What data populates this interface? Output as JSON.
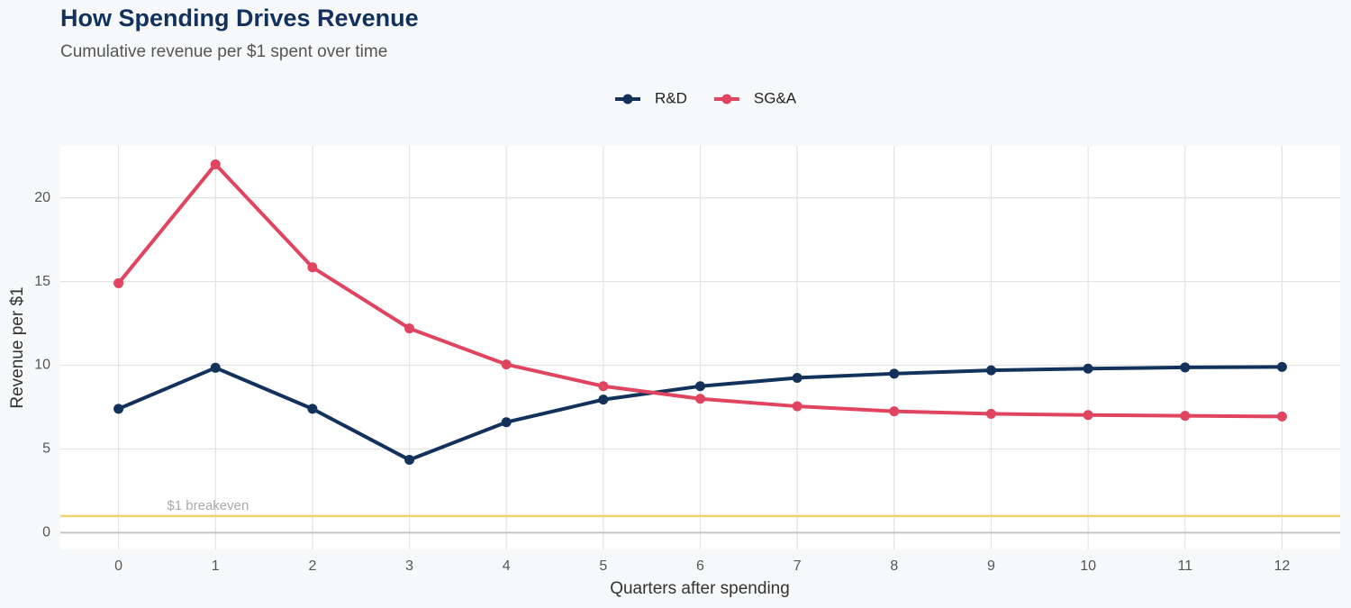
{
  "chart_data": {
    "type": "line",
    "title": "How Spending Drives Revenue",
    "subtitle": "Cumulative revenue per $1 spent over time",
    "x_label": "Quarters after spending",
    "y_label": "Revenue per $1",
    "x": [
      0,
      1,
      2,
      3,
      4,
      5,
      6,
      7,
      8,
      9,
      10,
      11,
      12
    ],
    "series": [
      {
        "name": "R&D",
        "color": "#12325b",
        "values": [
          7.4,
          9.85,
          7.4,
          4.35,
          6.6,
          7.95,
          8.75,
          9.25,
          9.5,
          9.7,
          9.8,
          9.87,
          9.9
        ]
      },
      {
        "name": "SG&A",
        "color": "#e0445f",
        "values": [
          14.9,
          22.0,
          15.85,
          12.2,
          10.05,
          8.75,
          8.0,
          7.55,
          7.25,
          7.1,
          7.03,
          6.98,
          6.94
        ]
      }
    ],
    "xlim": [
      -0.6,
      12.6
    ],
    "xticks": [
      0,
      1,
      2,
      3,
      4,
      5,
      6,
      7,
      8,
      9,
      10,
      11,
      12
    ],
    "ylim": [
      -1.0,
      23.1
    ],
    "yticks": [
      0,
      5,
      10,
      15,
      20
    ],
    "grid": true,
    "legend_position": "top",
    "reference_line": {
      "value": 1,
      "label": "$1 breakeven",
      "color": "#f2d06b"
    }
  }
}
